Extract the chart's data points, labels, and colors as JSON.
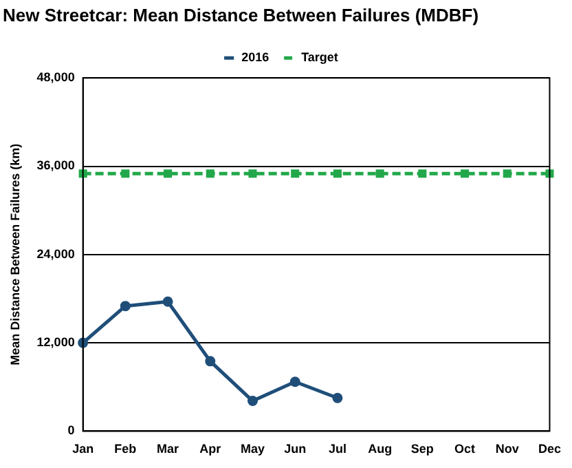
{
  "chart_data": {
    "type": "line",
    "title": "New Streetcar: Mean Distance Between Failures (MDBF)",
    "ylabel": "Mean Distance Between Failures (km)",
    "categories": [
      "Jan",
      "Feb",
      "Mar",
      "Apr",
      "May",
      "Jun",
      "Jul",
      "Aug",
      "Sep",
      "Oct",
      "Nov",
      "Dec"
    ],
    "series": [
      {
        "name": "2016",
        "color": "#1f4e79",
        "values": [
          12000,
          17000,
          17600,
          9500,
          4100,
          6700,
          4500,
          null,
          null,
          null,
          null,
          null
        ],
        "marker": "circle",
        "line_style": "solid"
      },
      {
        "name": "Target",
        "color": "#22a84a",
        "values": [
          35000,
          35000,
          35000,
          35000,
          35000,
          35000,
          35000,
          35000,
          35000,
          35000,
          35000,
          35000
        ],
        "marker": "square",
        "line_style": "dashed"
      }
    ],
    "ylim": [
      0,
      48000
    ],
    "yticks": [
      0,
      {
        "value": 12000,
        "label": "12,000"
      },
      {
        "value": 24000,
        "label": "24,000"
      },
      {
        "value": 36000,
        "label": "36,000"
      },
      {
        "value": 48000,
        "label": "48,000"
      }
    ],
    "grid": "y",
    "legend": "top"
  }
}
